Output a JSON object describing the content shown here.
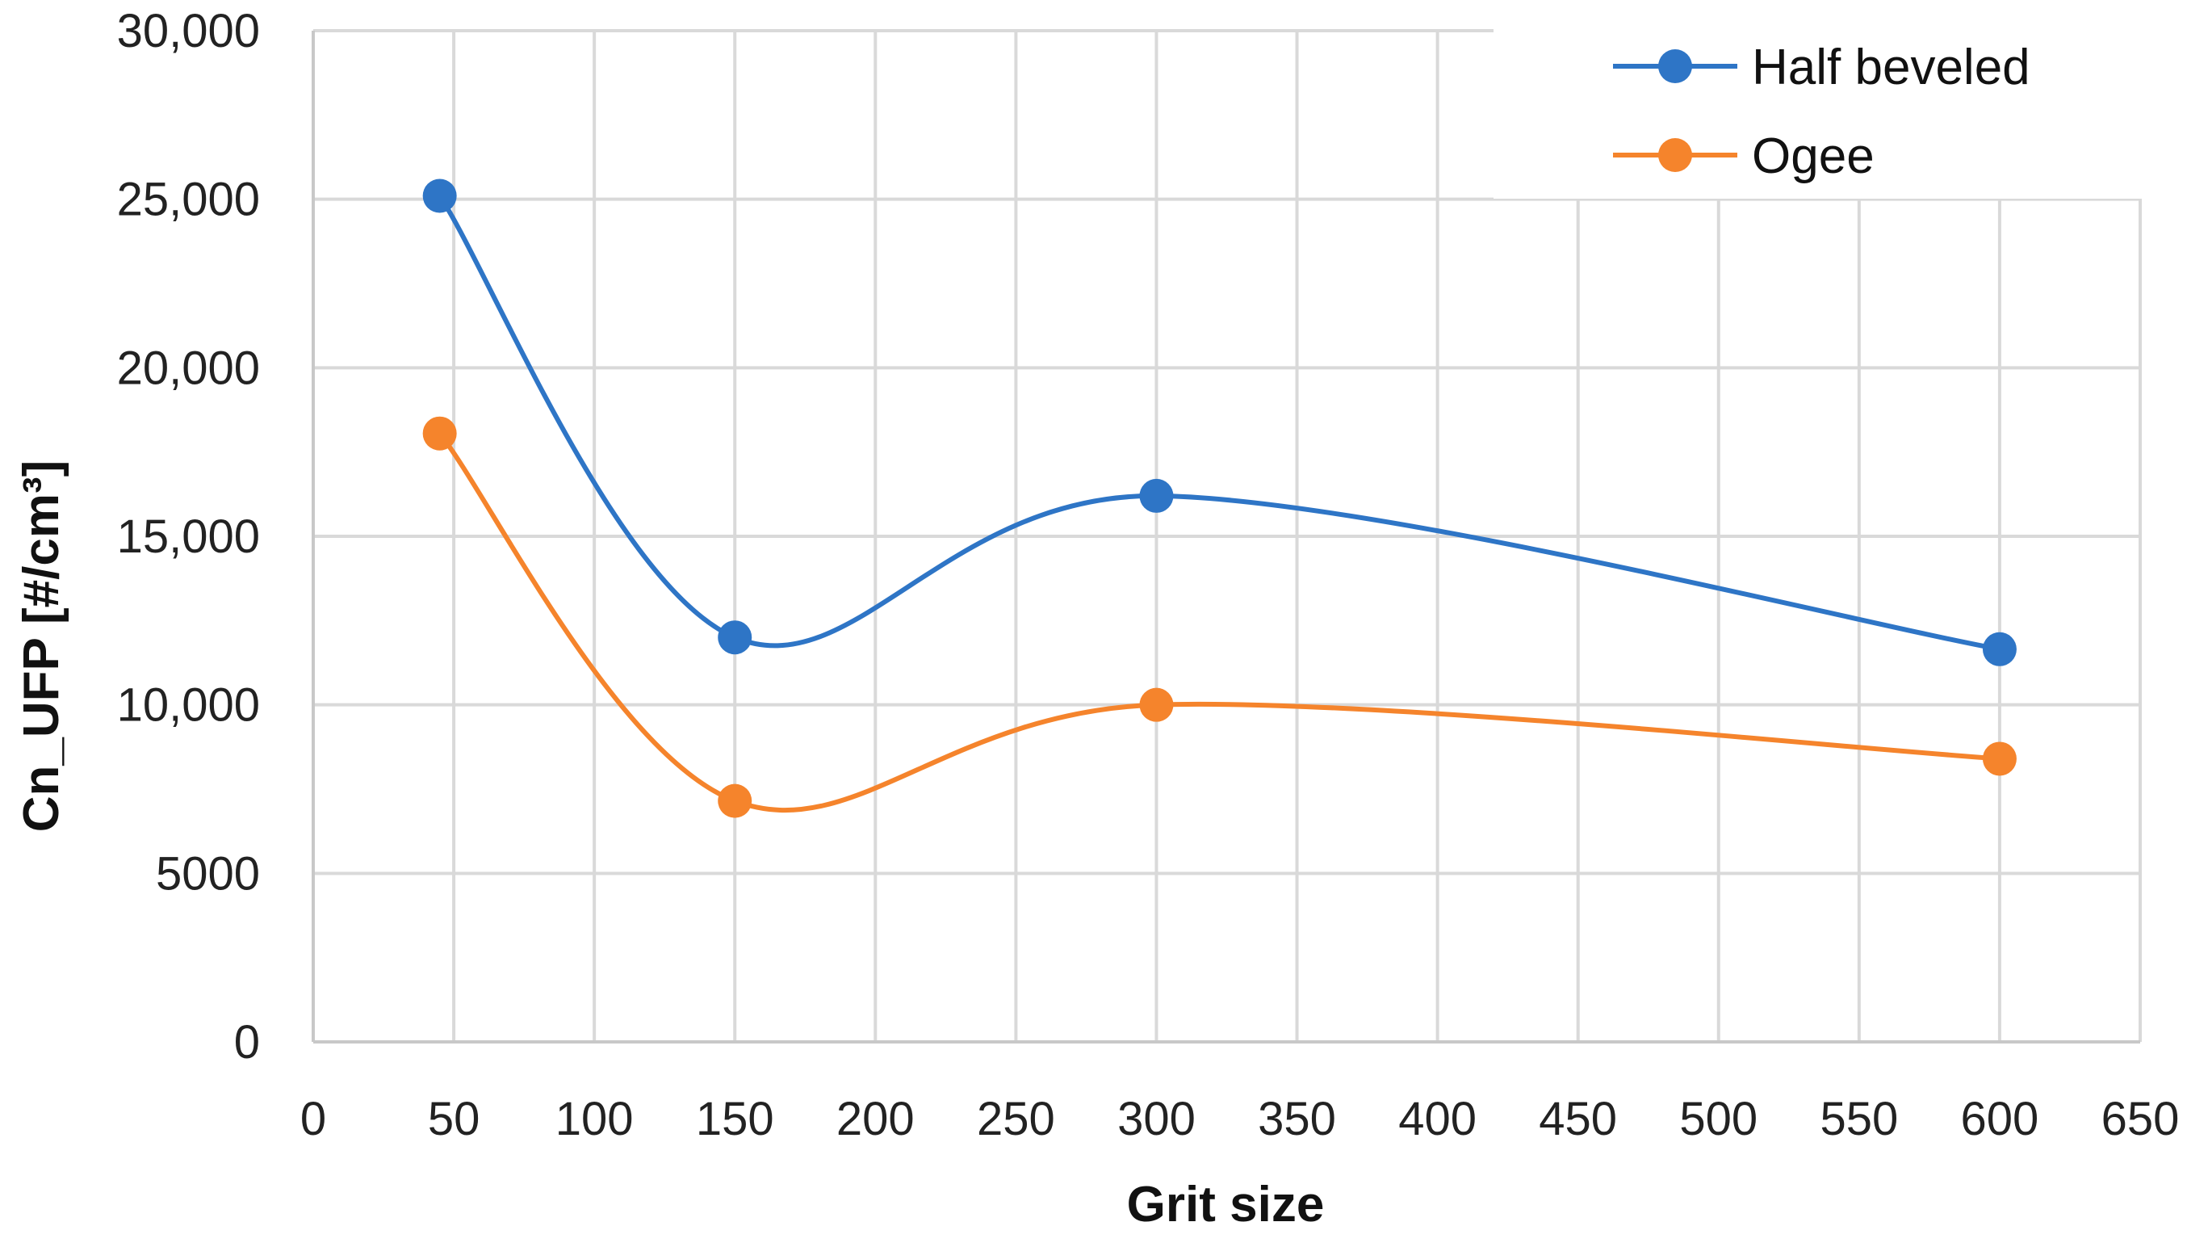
{
  "chart_data": {
    "type": "line",
    "title": "",
    "xlabel": "Grit size",
    "ylabel": "Cn_UFP [#/cm³]",
    "xlim": [
      0,
      650
    ],
    "ylim": [
      0,
      30000
    ],
    "x_ticks": [
      0,
      50,
      100,
      150,
      200,
      250,
      300,
      350,
      400,
      450,
      500,
      550,
      600,
      650
    ],
    "x_tick_labels": [
      "0",
      "50",
      "100",
      "150",
      "200",
      "250",
      "300",
      "350",
      "400",
      "450",
      "500",
      "550",
      "600",
      "650"
    ],
    "y_ticks": [
      0,
      5000,
      10000,
      15000,
      20000,
      25000,
      30000
    ],
    "y_tick_labels": [
      "0",
      "5000",
      "10,000",
      "15,000",
      "20,000",
      "25,000",
      "30,000"
    ],
    "grid": true,
    "smoothed": true,
    "legend_position": "top-right",
    "series": [
      {
        "name": "Half beveled",
        "color": "#2e75c6",
        "x": [
          45,
          150,
          300,
          600
        ],
        "y": [
          25100,
          12000,
          16200,
          11650
        ]
      },
      {
        "name": "Ogee",
        "color": "#f5842c",
        "x": [
          45,
          150,
          300,
          600
        ],
        "y": [
          18050,
          7150,
          10000,
          8400
        ]
      }
    ]
  }
}
